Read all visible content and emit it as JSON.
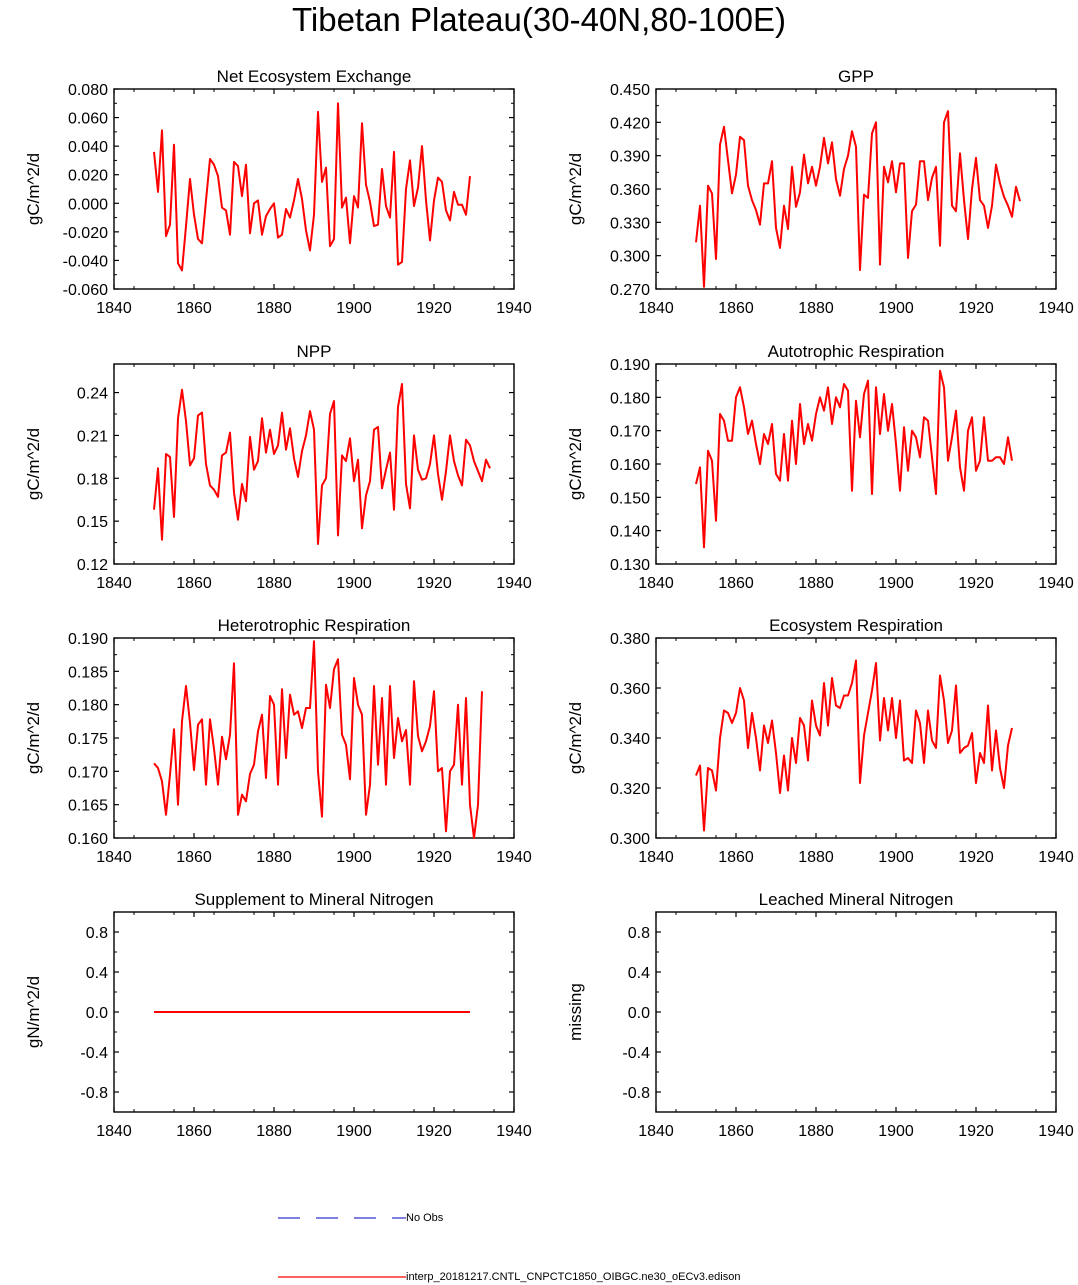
{
  "title": "Tibetan Plateau(30-40N,80-100E)",
  "legend": {
    "obs_label": "No Obs",
    "obs_color": "#3333cc",
    "model_label": "interp_20181217.CNTL_CNPCTC1850_OIBGC.ne30_oECv3.edison",
    "model_color": "#ff0000"
  },
  "chart_data": [
    {
      "type": "line",
      "title": "Net Ecosystem Exchange",
      "ylabel": "gC/m^2/d",
      "xlim": [
        1840,
        1940
      ],
      "ylim": [
        -0.06,
        0.08
      ],
      "xticks": [
        1840,
        1860,
        1880,
        1900,
        1920,
        1940
      ],
      "yticks": [
        "-0.060",
        "-0.040",
        "-0.020",
        "0.000",
        "0.020",
        "0.040",
        "0.060",
        "0.080"
      ],
      "x_start": 1850,
      "values": [
        0.036,
        0.008,
        0.051,
        -0.023,
        -0.015,
        0.041,
        -0.042,
        -0.047,
        -0.016,
        0.017,
        -0.008,
        -0.025,
        -0.028,
        0.002,
        0.031,
        0.027,
        0.019,
        -0.003,
        -0.005,
        -0.022,
        0.029,
        0.026,
        0.005,
        0.027,
        -0.021,
        0.0,
        0.002,
        -0.022,
        -0.009,
        -0.004,
        0.0,
        -0.024,
        -0.022,
        -0.004,
        -0.01,
        0.002,
        0.017,
        0.003,
        -0.019,
        -0.033,
        -0.008,
        0.064,
        0.015,
        0.025,
        -0.03,
        -0.025,
        0.07,
        -0.003,
        0.004,
        -0.028,
        0.005,
        -0.003,
        0.056,
        0.013,
        0.001,
        -0.016,
        -0.015,
        0.024,
        -0.002,
        -0.01,
        0.036,
        -0.043,
        -0.041,
        0.01,
        0.03,
        -0.002,
        0.011,
        0.04,
        0.002,
        -0.026,
        0.002,
        0.018,
        0.015,
        -0.005,
        -0.012,
        0.008,
        -0.001,
        -0.001,
        -0.008,
        0.019
      ]
    },
    {
      "type": "line",
      "title": "GPP",
      "ylabel": "gC/m^2/d",
      "xlim": [
        1840,
        1940
      ],
      "ylim": [
        0.27,
        0.45
      ],
      "xticks": [
        1840,
        1860,
        1880,
        1900,
        1920,
        1940
      ],
      "yticks": [
        "0.270",
        "0.300",
        "0.330",
        "0.360",
        "0.390",
        "0.420",
        "0.450"
      ],
      "x_start": 1850,
      "values": [
        0.312,
        0.345,
        0.272,
        0.363,
        0.356,
        0.297,
        0.4,
        0.416,
        0.386,
        0.356,
        0.373,
        0.407,
        0.404,
        0.363,
        0.35,
        0.341,
        0.328,
        0.365,
        0.365,
        0.385,
        0.325,
        0.307,
        0.345,
        0.324,
        0.38,
        0.344,
        0.357,
        0.391,
        0.365,
        0.38,
        0.363,
        0.38,
        0.406,
        0.383,
        0.402,
        0.369,
        0.354,
        0.378,
        0.39,
        0.412,
        0.398,
        0.287,
        0.355,
        0.352,
        0.41,
        0.42,
        0.292,
        0.38,
        0.366,
        0.385,
        0.357,
        0.383,
        0.383,
        0.298,
        0.34,
        0.346,
        0.385,
        0.385,
        0.35,
        0.37,
        0.38,
        0.309,
        0.42,
        0.43,
        0.345,
        0.34,
        0.392,
        0.35,
        0.315,
        0.36,
        0.388,
        0.35,
        0.345,
        0.325,
        0.345,
        0.382,
        0.365,
        0.353,
        0.345,
        0.335,
        0.362,
        0.349
      ]
    },
    {
      "type": "line",
      "title": "NPP",
      "ylabel": "gC/m^2/d",
      "xlim": [
        1840,
        1940
      ],
      "ylim": [
        0.12,
        0.26
      ],
      "xticks": [
        1840,
        1860,
        1880,
        1900,
        1920,
        1940
      ],
      "yticks": [
        "0.12",
        "0.15",
        "0.18",
        "0.21",
        "0.24"
      ],
      "x_start": 1850,
      "values": [
        0.158,
        0.187,
        0.137,
        0.197,
        0.195,
        0.153,
        0.222,
        0.242,
        0.22,
        0.189,
        0.194,
        0.224,
        0.226,
        0.19,
        0.175,
        0.172,
        0.167,
        0.196,
        0.198,
        0.212,
        0.17,
        0.151,
        0.176,
        0.164,
        0.209,
        0.186,
        0.192,
        0.222,
        0.198,
        0.214,
        0.197,
        0.203,
        0.226,
        0.2,
        0.215,
        0.194,
        0.181,
        0.199,
        0.21,
        0.227,
        0.214,
        0.134,
        0.175,
        0.18,
        0.225,
        0.234,
        0.14,
        0.196,
        0.192,
        0.208,
        0.178,
        0.193,
        0.145,
        0.168,
        0.178,
        0.214,
        0.216,
        0.173,
        0.186,
        0.198,
        0.158,
        0.23,
        0.246,
        0.176,
        0.159,
        0.21,
        0.186,
        0.179,
        0.18,
        0.19,
        0.21,
        0.183,
        0.165,
        0.185,
        0.21,
        0.192,
        0.182,
        0.175,
        0.207,
        0.203,
        0.192,
        0.185,
        0.178,
        0.193,
        0.187
      ]
    },
    {
      "type": "line",
      "title": "Autotrophic Respiration",
      "ylabel": "gC/m^2/d",
      "xlim": [
        1840,
        1940
      ],
      "ylim": [
        0.13,
        0.19
      ],
      "xticks": [
        1840,
        1860,
        1880,
        1900,
        1920,
        1940
      ],
      "yticks": [
        "0.130",
        "0.140",
        "0.150",
        "0.160",
        "0.170",
        "0.180",
        "0.190"
      ],
      "x_start": 1850,
      "values": [
        0.154,
        0.159,
        0.135,
        0.164,
        0.161,
        0.143,
        0.175,
        0.173,
        0.167,
        0.167,
        0.18,
        0.183,
        0.177,
        0.169,
        0.173,
        0.166,
        0.16,
        0.169,
        0.166,
        0.172,
        0.157,
        0.155,
        0.169,
        0.155,
        0.173,
        0.16,
        0.178,
        0.166,
        0.172,
        0.167,
        0.175,
        0.18,
        0.176,
        0.183,
        0.172,
        0.18,
        0.177,
        0.184,
        0.182,
        0.152,
        0.179,
        0.168,
        0.181,
        0.185,
        0.151,
        0.183,
        0.169,
        0.181,
        0.17,
        0.178,
        0.166,
        0.152,
        0.171,
        0.158,
        0.17,
        0.168,
        0.162,
        0.174,
        0.173,
        0.162,
        0.151,
        0.188,
        0.183,
        0.161,
        0.168,
        0.176,
        0.159,
        0.152,
        0.17,
        0.174,
        0.158,
        0.161,
        0.174,
        0.161,
        0.161,
        0.162,
        0.162,
        0.16,
        0.168,
        0.161
      ]
    },
    {
      "type": "line",
      "title": "Heterotrophic Respiration",
      "ylabel": "gC/m^2/d",
      "xlim": [
        1840,
        1940
      ],
      "ylim": [
        0.16,
        0.19
      ],
      "xticks": [
        1840,
        1860,
        1880,
        1900,
        1920,
        1940
      ],
      "yticks": [
        "0.160",
        "0.165",
        "0.170",
        "0.175",
        "0.180",
        "0.185",
        "0.190"
      ],
      "x_start": 1850,
      "values": [
        0.1712,
        0.1705,
        0.1685,
        0.1635,
        0.1695,
        0.1763,
        0.165,
        0.1775,
        0.1828,
        0.1773,
        0.1702,
        0.177,
        0.1778,
        0.168,
        0.1778,
        0.1734,
        0.168,
        0.1752,
        0.1718,
        0.1755,
        0.1862,
        0.1635,
        0.1665,
        0.1655,
        0.1696,
        0.171,
        0.176,
        0.1785,
        0.169,
        0.1813,
        0.18,
        0.168,
        0.1823,
        0.172,
        0.1815,
        0.1785,
        0.179,
        0.1765,
        0.1795,
        0.1795,
        0.1895,
        0.17,
        0.1632,
        0.183,
        0.1795,
        0.1853,
        0.1868,
        0.1755,
        0.174,
        0.1688,
        0.184,
        0.18,
        0.1785,
        0.1635,
        0.168,
        0.1828,
        0.171,
        0.181,
        0.168,
        0.1828,
        0.172,
        0.178,
        0.1745,
        0.1762,
        0.168,
        0.1835,
        0.1753,
        0.173,
        0.1745,
        0.1768,
        0.182,
        0.17,
        0.1705,
        0.161,
        0.17,
        0.171,
        0.18,
        0.168,
        0.181,
        0.165,
        0.16,
        0.165,
        0.182
      ]
    },
    {
      "type": "line",
      "title": "Ecosystem Respiration",
      "ylabel": "gC/m^2/d",
      "xlim": [
        1840,
        1940
      ],
      "ylim": [
        0.3,
        0.38
      ],
      "xticks": [
        1840,
        1860,
        1880,
        1900,
        1920,
        1940
      ],
      "yticks": [
        "0.300",
        "0.320",
        "0.340",
        "0.360",
        "0.380"
      ],
      "x_start": 1850,
      "values": [
        0.325,
        0.329,
        0.303,
        0.328,
        0.327,
        0.319,
        0.34,
        0.351,
        0.35,
        0.346,
        0.35,
        0.36,
        0.355,
        0.336,
        0.35,
        0.34,
        0.327,
        0.345,
        0.338,
        0.347,
        0.334,
        0.318,
        0.333,
        0.319,
        0.34,
        0.33,
        0.348,
        0.345,
        0.331,
        0.355,
        0.345,
        0.341,
        0.362,
        0.345,
        0.364,
        0.353,
        0.352,
        0.357,
        0.357,
        0.362,
        0.371,
        0.322,
        0.341,
        0.35,
        0.359,
        0.37,
        0.339,
        0.356,
        0.343,
        0.356,
        0.34,
        0.355,
        0.331,
        0.332,
        0.33,
        0.351,
        0.346,
        0.33,
        0.351,
        0.339,
        0.336,
        0.365,
        0.355,
        0.338,
        0.343,
        0.361,
        0.334,
        0.336,
        0.337,
        0.342,
        0.322,
        0.334,
        0.33,
        0.353,
        0.327,
        0.343,
        0.328,
        0.32,
        0.337,
        0.344
      ]
    },
    {
      "type": "line",
      "title": "Supplement to Mineral Nitrogen",
      "ylabel": "gN/m^2/d",
      "xlim": [
        1840,
        1940
      ],
      "ylim": [
        -1.0,
        1.0
      ],
      "xticks": [
        1840,
        1860,
        1880,
        1900,
        1920,
        1940
      ],
      "yticks": [
        "-0.8",
        "-0.4",
        "0.0",
        "0.4",
        "0.8"
      ],
      "ytick_values": [
        -0.8,
        -0.4,
        0.0,
        0.4,
        0.8
      ],
      "x_start": 1850,
      "values": [
        0,
        0,
        0,
        0,
        0,
        0,
        0,
        0,
        0,
        0,
        0,
        0,
        0,
        0,
        0,
        0,
        0,
        0,
        0,
        0,
        0,
        0,
        0,
        0,
        0,
        0,
        0,
        0,
        0,
        0,
        0,
        0,
        0,
        0,
        0,
        0,
        0,
        0,
        0,
        0,
        0,
        0,
        0,
        0,
        0,
        0,
        0,
        0,
        0,
        0,
        0,
        0,
        0,
        0,
        0,
        0,
        0,
        0,
        0,
        0,
        0,
        0,
        0,
        0,
        0,
        0,
        0,
        0,
        0,
        0,
        0,
        0,
        0,
        0,
        0,
        0,
        0,
        0,
        0,
        0
      ]
    },
    {
      "type": "line",
      "title": "Leached Mineral Nitrogen",
      "ylabel": "missing",
      "xlim": [
        1840,
        1940
      ],
      "ylim": [
        -1.0,
        1.0
      ],
      "xticks": [
        1840,
        1860,
        1880,
        1900,
        1920,
        1940
      ],
      "yticks": [
        "-0.8",
        "-0.4",
        "0.0",
        "0.4",
        "0.8"
      ],
      "ytick_values": [
        -0.8,
        -0.4,
        0.0,
        0.4,
        0.8
      ],
      "x_start": 1850,
      "values": []
    }
  ]
}
